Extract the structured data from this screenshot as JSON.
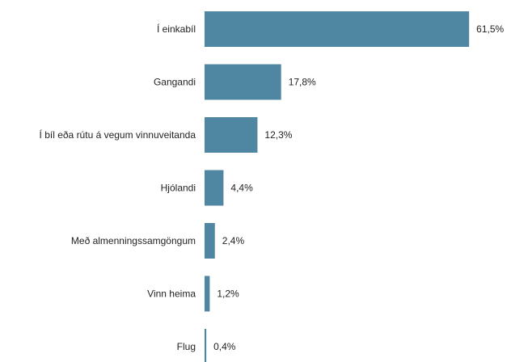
{
  "chart_data": {
    "type": "bar",
    "orientation": "horizontal",
    "categories": [
      "Í einkabíl",
      "Gangandi",
      "Í bíl eða rútu á vegum vinnuveitanda",
      "Hjólandi",
      "Með almenningssamgöngum",
      "Vinn heima",
      "Flug"
    ],
    "values": [
      61.5,
      17.8,
      12.3,
      4.4,
      2.4,
      1.2,
      0.4
    ],
    "value_labels": [
      "61,5%",
      "17,8%",
      "12,3%",
      "4,4%",
      "2,4%",
      "1,2%",
      "0,4%"
    ],
    "color": "#4f87a2"
  }
}
